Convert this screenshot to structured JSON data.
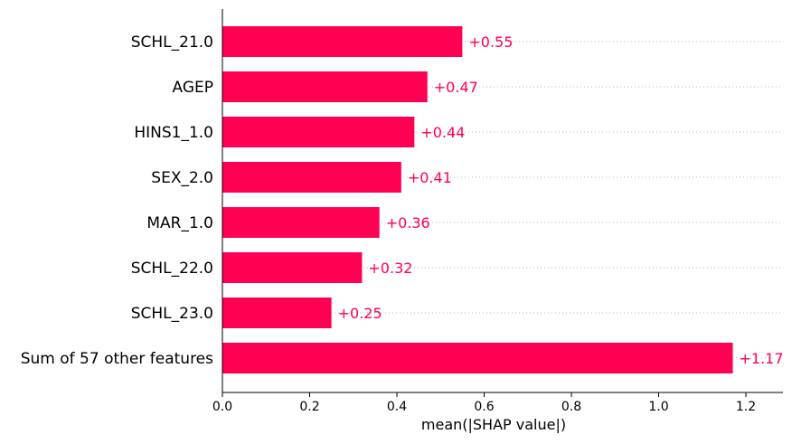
{
  "chart_data": {
    "type": "bar",
    "orientation": "horizontal",
    "categories": [
      "SCHL_21.0",
      "AGEP",
      "HINS1_1.0",
      "SEX_2.0",
      "MAR_1.0",
      "SCHL_22.0",
      "SCHL_23.0",
      "Sum of 57 other features"
    ],
    "values": [
      0.55,
      0.47,
      0.44,
      0.41,
      0.36,
      0.32,
      0.25,
      1.17
    ],
    "value_labels": [
      "+0.55",
      "+0.47",
      "+0.44",
      "+0.41",
      "+0.36",
      "+0.32",
      "+0.25",
      "+1.17"
    ],
    "xlabel": "mean(|SHAP value|)",
    "ylabel": "",
    "title": "",
    "xlim": [
      0,
      1.285
    ],
    "xticks": [
      0.0,
      0.2,
      0.4,
      0.6,
      0.8,
      1.0,
      1.2
    ],
    "xtick_labels": [
      "0.0",
      "0.2",
      "0.4",
      "0.6",
      "0.8",
      "1.0",
      "1.2"
    ],
    "grid": "dotted horizontal guide lines per bar",
    "legend": "none",
    "bar_color": "#ff0052",
    "label_color": "#ff0052"
  }
}
